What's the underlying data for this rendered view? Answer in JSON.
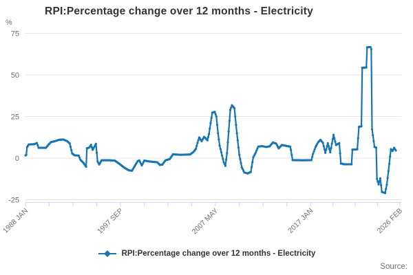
{
  "title": "RPI:Percentage change over 12 months - Electricity",
  "source_label": "Source:",
  "legend": {
    "label": "RPI:Percentage change over 12 months - Electricity",
    "marker": "line-with-diamond-icon"
  },
  "colors": {
    "series_blue": "#1775b5",
    "grid": "#e6e6e6",
    "axis": "#ccd6eb",
    "tick_text": "#707070",
    "title_text": "#333333"
  },
  "chart_data": {
    "type": "line",
    "title": "RPI:Percentage change over 12 months - Electricity",
    "unit_label": "%",
    "ylabel": "%",
    "xlabel": "",
    "ylim": [
      -25,
      75
    ],
    "yticks": [
      75,
      50,
      25,
      0,
      -25
    ],
    "grid": "horizontal-only",
    "legend_position": "bottom-center",
    "x_start": "1988-01",
    "x_end": "2026-02",
    "xticklabels": [
      "1988 JAN",
      "1997 SEP",
      "2007 MAY",
      "2017 JAN",
      "2026 FEB"
    ],
    "minor_ticks_between_labels": 3,
    "series": [
      {
        "name": "RPI:Percentage change over 12 months - Electricity",
        "color": "#1775b5",
        "points": [
          [
            "1988-01",
            1.6
          ],
          [
            "1988-02",
            2.0
          ],
          [
            "1988-03",
            6.6
          ],
          [
            "1988-05",
            8.2
          ],
          [
            "1988-12",
            8.4
          ],
          [
            "1989-03",
            9.1
          ],
          [
            "1989-05",
            6.2
          ],
          [
            "1990-02",
            6.2
          ],
          [
            "1990-05",
            8.0
          ],
          [
            "1990-08",
            9.6
          ],
          [
            "1991-01",
            10.2
          ],
          [
            "1991-06",
            11.0
          ],
          [
            "1991-11",
            11.2
          ],
          [
            "1992-04",
            10.2
          ],
          [
            "1992-07",
            8.8
          ],
          [
            "1992-10",
            2.8
          ],
          [
            "1993-01",
            1.7
          ],
          [
            "1993-06",
            1.5
          ],
          [
            "1993-08",
            -0.9
          ],
          [
            "1993-12",
            -3.0
          ],
          [
            "1994-03",
            -5.2
          ],
          [
            "1994-04",
            5.9
          ],
          [
            "1994-07",
            6.4
          ],
          [
            "1994-09",
            8.0
          ],
          [
            "1994-11",
            5.0
          ],
          [
            "1995-03",
            8.6
          ],
          [
            "1995-05",
            -2.0
          ],
          [
            "1995-07",
            -3.8
          ],
          [
            "1995-10",
            -1.3
          ],
          [
            "1996-08",
            -1.3
          ],
          [
            "1997-02",
            -1.5
          ],
          [
            "1997-07",
            -3.2
          ],
          [
            "1998-01",
            -5.5
          ],
          [
            "1998-07",
            -7.3
          ],
          [
            "1998-11",
            -7.6
          ],
          [
            "1999-03",
            -4.2
          ],
          [
            "1999-06",
            -1.8
          ],
          [
            "1999-08",
            -1.4
          ],
          [
            "1999-11",
            -4.4
          ],
          [
            "2000-02",
            -1.5
          ],
          [
            "2000-08",
            -2.0
          ],
          [
            "2001-02",
            -2.3
          ],
          [
            "2001-06",
            -2.5
          ],
          [
            "2001-09",
            -4.1
          ],
          [
            "2001-12",
            -3.9
          ],
          [
            "2002-04",
            -1.3
          ],
          [
            "2002-09",
            -0.6
          ],
          [
            "2003-01",
            2.3
          ],
          [
            "2003-10",
            2.0
          ],
          [
            "2004-10",
            2.2
          ],
          [
            "2005-02",
            3.7
          ],
          [
            "2005-05",
            5.6
          ],
          [
            "2005-07",
            9.2
          ],
          [
            "2005-09",
            12.4
          ],
          [
            "2005-12",
            10.2
          ],
          [
            "2006-03",
            12.8
          ],
          [
            "2006-05",
            11.9
          ],
          [
            "2006-07",
            10.7
          ],
          [
            "2006-09",
            14.5
          ],
          [
            "2006-11",
            21.0
          ],
          [
            "2007-01",
            27.3
          ],
          [
            "2007-04",
            27.8
          ],
          [
            "2007-06",
            25.0
          ],
          [
            "2007-08",
            15.0
          ],
          [
            "2007-10",
            7.5
          ],
          [
            "2008-01",
            1.5
          ],
          [
            "2008-03",
            -2.5
          ],
          [
            "2008-05",
            -4.6
          ],
          [
            "2008-07",
            3.0
          ],
          [
            "2008-09",
            16.0
          ],
          [
            "2008-11",
            29.0
          ],
          [
            "2009-01",
            31.8
          ],
          [
            "2009-04",
            30.0
          ],
          [
            "2009-07",
            15.0
          ],
          [
            "2009-10",
            2.0
          ],
          [
            "2010-01",
            -5.5
          ],
          [
            "2010-04",
            -8.6
          ],
          [
            "2010-08",
            -9.2
          ],
          [
            "2010-12",
            -8.3
          ],
          [
            "2011-03",
            0.5
          ],
          [
            "2011-06",
            3.3
          ],
          [
            "2011-09",
            6.9
          ],
          [
            "2012-02",
            7.2
          ],
          [
            "2012-07",
            6.7
          ],
          [
            "2012-11",
            7.1
          ],
          [
            "2013-03",
            9.4
          ],
          [
            "2013-07",
            8.7
          ],
          [
            "2013-10",
            5.9
          ],
          [
            "2014-02",
            7.9
          ],
          [
            "2014-08",
            7.3
          ],
          [
            "2014-12",
            6.9
          ],
          [
            "2015-01",
            4.9
          ],
          [
            "2015-03",
            -1.2
          ],
          [
            "2016-04",
            -1.3
          ],
          [
            "2017-02",
            -1.2
          ],
          [
            "2017-04",
            2.6
          ],
          [
            "2017-07",
            6.7
          ],
          [
            "2017-10",
            9.4
          ],
          [
            "2018-01",
            11.0
          ],
          [
            "2018-04",
            9.2
          ],
          [
            "2018-07",
            3.2
          ],
          [
            "2018-10",
            9.0
          ],
          [
            "2019-01",
            3.5
          ],
          [
            "2019-05",
            14.0
          ],
          [
            "2019-08",
            7.9
          ],
          [
            "2019-12",
            9.0
          ],
          [
            "2020-02",
            -3.2
          ],
          [
            "2020-06",
            -3.7
          ],
          [
            "2021-03",
            -3.7
          ],
          [
            "2021-04",
            5.1
          ],
          [
            "2021-10",
            5.3
          ],
          [
            "2021-12",
            18.8
          ],
          [
            "2022-03",
            19.1
          ],
          [
            "2022-04",
            54.3
          ],
          [
            "2022-09",
            54.5
          ],
          [
            "2022-10",
            66.6
          ],
          [
            "2023-02",
            66.8
          ],
          [
            "2023-03",
            65.6
          ],
          [
            "2023-04",
            17.3
          ],
          [
            "2023-07",
            6.7
          ],
          [
            "2023-09",
            6.3
          ],
          [
            "2023-10",
            -12.4
          ],
          [
            "2023-12",
            -15.8
          ],
          [
            "2024-02",
            -12.2
          ],
          [
            "2024-04",
            -20.3
          ],
          [
            "2024-08",
            -21.0
          ],
          [
            "2024-10",
            -16.0
          ],
          [
            "2024-12",
            -7.8
          ],
          [
            "2025-02",
            1.0
          ],
          [
            "2025-03",
            5.4
          ],
          [
            "2025-05",
            4.3
          ],
          [
            "2025-07",
            6.2
          ],
          [
            "2025-09",
            4.6
          ]
        ]
      }
    ]
  }
}
